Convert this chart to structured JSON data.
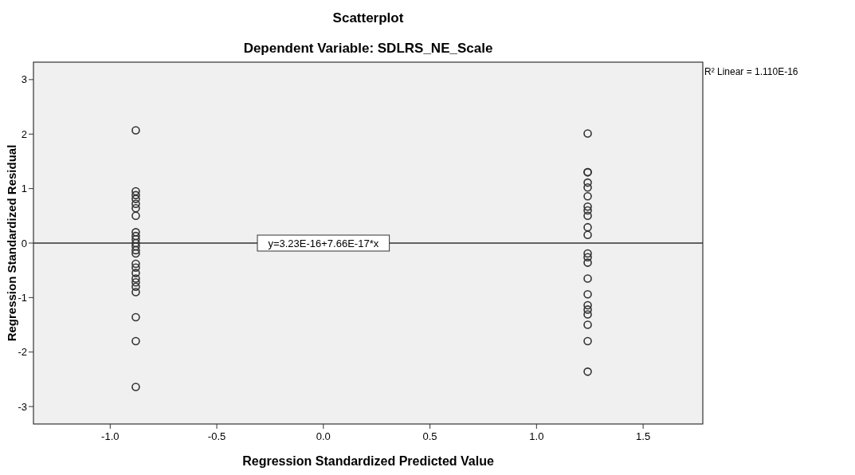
{
  "chart_data": {
    "type": "scatter",
    "title": "Scatterplot",
    "subtitle": "Dependent Variable: SDLRS_NE_Scale",
    "xlabel": "Regression Standardized Predicted Value",
    "ylabel": "Regression Standardized Residual",
    "xlim": [
      -1.36,
      1.78
    ],
    "ylim": [
      -3.32,
      3.32
    ],
    "xticks": [
      {
        "value": -1,
        "label": "-1.0"
      },
      {
        "value": -0.5,
        "label": "-0.5"
      },
      {
        "value": 0,
        "label": "0.0"
      },
      {
        "value": 0.5,
        "label": "0.5"
      },
      {
        "value": 1,
        "label": "1.0"
      },
      {
        "value": 1.5,
        "label": "1.5"
      }
    ],
    "yticks": [
      -3,
      -2,
      -1,
      0,
      1,
      2,
      3
    ],
    "grid": false,
    "marker": "circle",
    "series": [
      {
        "color": "#333333",
        "x": [
          -0.88,
          -0.88,
          -0.88,
          -0.88,
          -0.88,
          -0.88,
          -0.88,
          -0.88,
          -0.88,
          -0.88,
          -0.88,
          -0.88,
          -0.88,
          -0.88,
          -0.88,
          -0.88,
          -0.88,
          -0.88,
          -0.88,
          -0.88,
          -0.88,
          -0.88,
          -0.88,
          -0.88
        ],
        "values": [
          2.07,
          0.95,
          0.88,
          0.81,
          0.72,
          0.64,
          0.5,
          0.2,
          0.13,
          0.07,
          0,
          -0.06,
          -0.13,
          -0.19,
          -0.38,
          -0.45,
          -0.55,
          -0.65,
          -0.72,
          -0.8,
          -0.9,
          -1.36,
          -1.8,
          -2.64
        ]
      },
      {
        "color": "#333333",
        "x": [
          1.24,
          1.24,
          1.24,
          1.24,
          1.24,
          1.24,
          1.24,
          1.24,
          1.24,
          1.24,
          1.24,
          1.24,
          1.24,
          1.24,
          1.24,
          1.24,
          1.24,
          1.24,
          1.24,
          1.24,
          1.24,
          1.24
        ],
        "values": [
          2.01,
          1.3,
          1.3,
          1.11,
          1.02,
          0.86,
          0.67,
          0.6,
          0.5,
          0.29,
          0.15,
          -0.19,
          -0.26,
          -0.36,
          -0.65,
          -0.94,
          -1.14,
          -1.22,
          -1.31,
          -1.5,
          -1.8,
          -2.36
        ]
      },
      {
        "type": "line",
        "color": "#333333",
        "x": [
          -1.36,
          1.78
        ],
        "values": [
          0,
          0
        ],
        "line_style": "solid",
        "marker": "none"
      }
    ],
    "annotations": [
      {
        "text": "y=3.23E-16+7.66E-17*x",
        "x": 0,
        "y": 0
      },
      "R² Linear = 1.110E-16"
    ]
  }
}
